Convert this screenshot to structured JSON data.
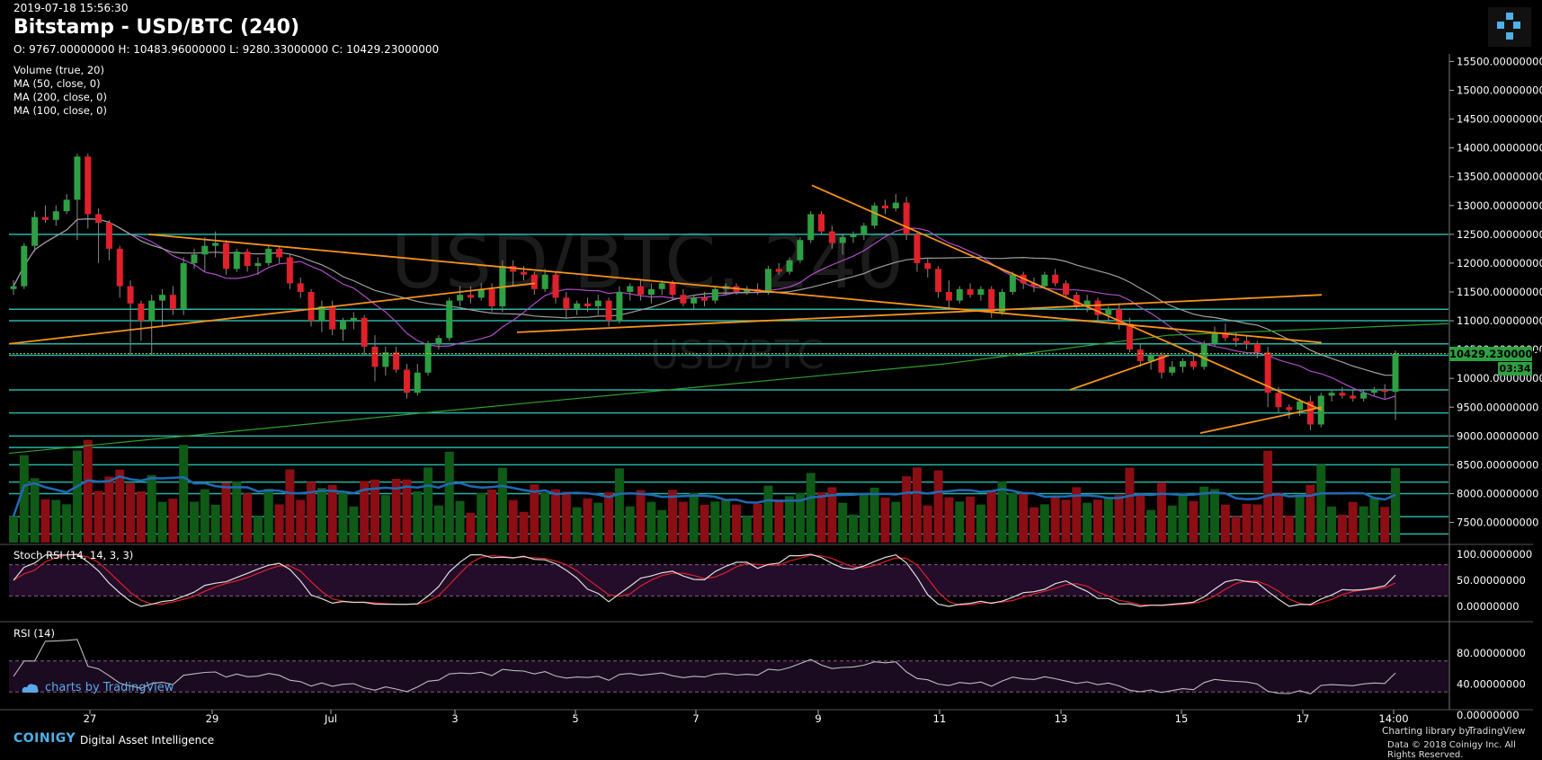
{
  "header": {
    "date": "2019-07-18 15:56:30",
    "title": "Bitstamp - USD/BTC (240)",
    "ohlc": "O: 9767.00000000 H: 10483.96000000 L: 9280.33000000 C: 10429.23000000"
  },
  "legend": [
    "Volume (true, 20)",
    "MA (50, close, 0)",
    "MA (200, close, 0)",
    "MA (100, close, 0)"
  ],
  "watermark": {
    "main": "USD/BTC, 240",
    "sub": "USD/BTC"
  },
  "stoch_label": "Stoch RSI (14, 14, 3, 3)",
  "rsi_label": "RSI (14)",
  "price_tag": "10429.23000000",
  "time_tag": "03:34",
  "footer": {
    "tv_logo": "charts by TradingView",
    "coinigy": "COINIGY",
    "dai": "Digital Asset Intelligence",
    "charting_library": "Charting library by",
    "tv_brand": "TradingView",
    "copyright": "Data © 2018 Coinigy Inc. All Rights Reserved."
  },
  "colors": {
    "up": "#2ea043",
    "down": "#e0202a",
    "vol_up": "#0f5a16",
    "vol_down": "#8a0e14",
    "trend": "#f7931a",
    "hline": "#2dd4c4",
    "ma50": "#b04cc8",
    "ma100": "#9e9e9e",
    "ma200": "#2fa02f",
    "vol_ma": "#1f6ab5"
  },
  "chart_data": {
    "type": "candlestick",
    "price_axis": [
      "15500.00000000",
      "15000.00000000",
      "14500.00000000",
      "14000.00000000",
      "13500.00000000",
      "13000.00000000",
      "12500.00000000",
      "12000.00000000",
      "11500.00000000",
      "11000.00000000",
      "10500.00000000",
      "10000.00000000",
      "9500.00000000",
      "9000.00000000",
      "8500.00000000",
      "8000.00000000",
      "7500.00000000"
    ],
    "stoch_axis": [
      "100.00000000",
      "50.00000000",
      "0.00000000"
    ],
    "rsi_axis": [
      "80.00000000",
      "40.00000000",
      "0.00000000"
    ],
    "x_labels": [
      "27",
      "29",
      "Jul",
      "3",
      "5",
      "7",
      "9",
      "11",
      "13",
      "15",
      "17",
      "14:00"
    ],
    "ylim": [
      7150,
      15600
    ],
    "horizontal_levels": [
      12500,
      11200,
      11000,
      10600,
      10400,
      9800,
      9400,
      9000,
      8800,
      8500,
      8200,
      8000,
      7600,
      7300
    ],
    "candles": [
      [
        11550,
        11700,
        11450,
        11600
      ],
      [
        11600,
        12350,
        11550,
        12300
      ],
      [
        12300,
        12900,
        12200,
        12800
      ],
      [
        12800,
        13000,
        12700,
        12750
      ],
      [
        12750,
        13000,
        12650,
        12900
      ],
      [
        12900,
        13200,
        12850,
        13100
      ],
      [
        13100,
        13900,
        12400,
        13850
      ],
      [
        13850,
        13900,
        12600,
        12850
      ],
      [
        12850,
        12950,
        12000,
        12700
      ],
      [
        12700,
        12750,
        12050,
        12250
      ],
      [
        12250,
        12300,
        11400,
        11600
      ],
      [
        11600,
        11700,
        10400,
        11300
      ],
      [
        11300,
        11350,
        10650,
        11000
      ],
      [
        11000,
        11450,
        10400,
        11350
      ],
      [
        11350,
        11550,
        10900,
        11450
      ],
      [
        11450,
        11600,
        11100,
        11200
      ],
      [
        11200,
        12100,
        11100,
        12000
      ],
      [
        12000,
        12250,
        11900,
        12150
      ],
      [
        12150,
        12450,
        11850,
        12300
      ],
      [
        12300,
        12550,
        12100,
        12350
      ],
      [
        12350,
        12400,
        11800,
        11900
      ],
      [
        11900,
        12250,
        11850,
        12200
      ],
      [
        12200,
        12250,
        11850,
        11950
      ],
      [
        11950,
        12100,
        11800,
        12000
      ],
      [
        12000,
        12300,
        11950,
        12250
      ],
      [
        12250,
        12300,
        12000,
        12100
      ],
      [
        12100,
        12150,
        11550,
        11650
      ],
      [
        11650,
        11750,
        11400,
        11500
      ],
      [
        11500,
        11550,
        10900,
        11000
      ],
      [
        11000,
        11350,
        10800,
        11250
      ],
      [
        11250,
        11350,
        10750,
        10850
      ],
      [
        10850,
        11050,
        10650,
        11000
      ],
      [
        11000,
        11150,
        10850,
        11050
      ],
      [
        11050,
        11100,
        10400,
        10550
      ],
      [
        10550,
        10750,
        9950,
        10200
      ],
      [
        10200,
        10550,
        10050,
        10450
      ],
      [
        10450,
        10550,
        10100,
        10150
      ],
      [
        10150,
        10250,
        9650,
        9750
      ],
      [
        9750,
        10250,
        9700,
        10100
      ],
      [
        10100,
        10650,
        10050,
        10600
      ],
      [
        10600,
        10750,
        10500,
        10700
      ],
      [
        10700,
        11400,
        10650,
        11350
      ],
      [
        11350,
        11600,
        11250,
        11450
      ],
      [
        11450,
        11600,
        11300,
        11400
      ],
      [
        11400,
        11650,
        11350,
        11550
      ],
      [
        11550,
        11650,
        11150,
        11250
      ],
      [
        11250,
        12050,
        11150,
        11950
      ],
      [
        11950,
        12050,
        11600,
        11850
      ],
      [
        11850,
        11950,
        11700,
        11800
      ],
      [
        11800,
        11850,
        11450,
        11550
      ],
      [
        11550,
        11900,
        11500,
        11800
      ],
      [
        11800,
        11850,
        11300,
        11400
      ],
      [
        11400,
        11500,
        11050,
        11200
      ],
      [
        11200,
        11350,
        11100,
        11300
      ],
      [
        11300,
        11400,
        11150,
        11250
      ],
      [
        11250,
        11450,
        11100,
        11350
      ],
      [
        11350,
        11400,
        10900,
        11000
      ],
      [
        11000,
        11600,
        10950,
        11500
      ],
      [
        11500,
        11650,
        11350,
        11600
      ],
      [
        11600,
        11700,
        11350,
        11450
      ],
      [
        11450,
        11650,
        11300,
        11550
      ],
      [
        11550,
        11700,
        11450,
        11650
      ],
      [
        11650,
        11700,
        11350,
        11450
      ],
      [
        11450,
        11550,
        11250,
        11300
      ],
      [
        11300,
        11450,
        11200,
        11400
      ],
      [
        11400,
        11500,
        11250,
        11350
      ],
      [
        11350,
        11600,
        11300,
        11550
      ],
      [
        11550,
        11650,
        11450,
        11600
      ],
      [
        11600,
        11650,
        11450,
        11500
      ],
      [
        11500,
        11600,
        11450,
        11550
      ],
      [
        11550,
        11650,
        11450,
        11500
      ],
      [
        11500,
        11950,
        11450,
        11900
      ],
      [
        11900,
        12000,
        11800,
        11850
      ],
      [
        11850,
        12100,
        11800,
        12050
      ],
      [
        12050,
        12450,
        12000,
        12400
      ],
      [
        12400,
        12900,
        12350,
        12850
      ],
      [
        12850,
        12900,
        12500,
        12550
      ],
      [
        12550,
        12650,
        12250,
        12350
      ],
      [
        12350,
        12500,
        12150,
        12450
      ],
      [
        12450,
        12550,
        12350,
        12500
      ],
      [
        12500,
        12700,
        12400,
        12650
      ],
      [
        12650,
        13050,
        12600,
        13000
      ],
      [
        13000,
        13100,
        12850,
        12950
      ],
      [
        12950,
        13200,
        12900,
        13050
      ],
      [
        13050,
        13150,
        12400,
        12500
      ],
      [
        12500,
        12550,
        11850,
        12000
      ],
      [
        12000,
        12100,
        11750,
        11900
      ],
      [
        11900,
        11950,
        11400,
        11500
      ],
      [
        11500,
        11700,
        11200,
        11350
      ],
      [
        11350,
        11600,
        11300,
        11550
      ],
      [
        11550,
        11650,
        11400,
        11450
      ],
      [
        11450,
        11600,
        11350,
        11550
      ],
      [
        11550,
        11600,
        11050,
        11150
      ],
      [
        11150,
        11550,
        11100,
        11500
      ],
      [
        11500,
        11850,
        11450,
        11800
      ],
      [
        11800,
        11850,
        11550,
        11650
      ],
      [
        11650,
        11750,
        11500,
        11600
      ],
      [
        11600,
        11850,
        11550,
        11800
      ],
      [
        11800,
        11900,
        11600,
        11650
      ],
      [
        11650,
        11700,
        11400,
        11450
      ],
      [
        11450,
        11500,
        11200,
        11250
      ],
      [
        11250,
        11450,
        11150,
        11350
      ],
      [
        11350,
        11400,
        11000,
        11100
      ],
      [
        11100,
        11250,
        11000,
        11200
      ],
      [
        11200,
        11300,
        10850,
        10950
      ],
      [
        10950,
        11050,
        10450,
        10500
      ],
      [
        10500,
        10600,
        10200,
        10300
      ],
      [
        10300,
        10450,
        10150,
        10400
      ],
      [
        10400,
        10450,
        10000,
        10100
      ],
      [
        10100,
        10300,
        10050,
        10200
      ],
      [
        10200,
        10350,
        10100,
        10300
      ],
      [
        10300,
        10400,
        10150,
        10200
      ],
      [
        10200,
        10650,
        10150,
        10600
      ],
      [
        10600,
        10900,
        10550,
        10800
      ],
      [
        10800,
        10950,
        10650,
        10700
      ],
      [
        10700,
        10800,
        10550,
        10650
      ],
      [
        10650,
        10750,
        10500,
        10600
      ],
      [
        10600,
        10650,
        10350,
        10450
      ],
      [
        10450,
        10550,
        9500,
        9750
      ],
      [
        9750,
        9850,
        9400,
        9500
      ],
      [
        9500,
        9550,
        9300,
        9450
      ],
      [
        9450,
        9650,
        9350,
        9600
      ],
      [
        9600,
        9700,
        9100,
        9200
      ],
      [
        9200,
        9750,
        9150,
        9700
      ],
      [
        9700,
        9800,
        9600,
        9750
      ],
      [
        9750,
        9850,
        9650,
        9700
      ],
      [
        9700,
        9800,
        9600,
        9650
      ],
      [
        9650,
        9800,
        9600,
        9750
      ],
      [
        9750,
        9850,
        9700,
        9800
      ],
      [
        9800,
        9900,
        9650,
        9767
      ],
      [
        9767,
        10484,
        9280,
        10429
      ]
    ]
  }
}
